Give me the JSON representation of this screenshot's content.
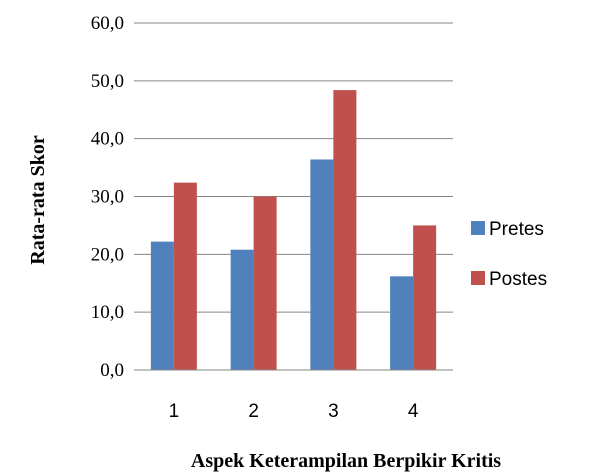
{
  "chart_data": {
    "type": "bar",
    "categories": [
      "1",
      "2",
      "3",
      "4"
    ],
    "series": [
      {
        "name": "Pretes",
        "values": [
          22.2,
          20.8,
          36.4,
          16.2
        ],
        "color": "#4f81bd"
      },
      {
        "name": "Postes",
        "values": [
          32.4,
          30.0,
          48.4,
          25.0
        ],
        "color": "#c0504d"
      }
    ],
    "xlabel": "Aspek Keterampilan Berpikir Kritis",
    "ylabel": "Rata-rata Skor",
    "ylim": [
      0,
      60
    ],
    "yticks": [
      "0,0",
      "10,0",
      "20,0",
      "30,0",
      "40,0",
      "50,0",
      "60,0"
    ],
    "grid": "horizontal",
    "legend": "right"
  }
}
